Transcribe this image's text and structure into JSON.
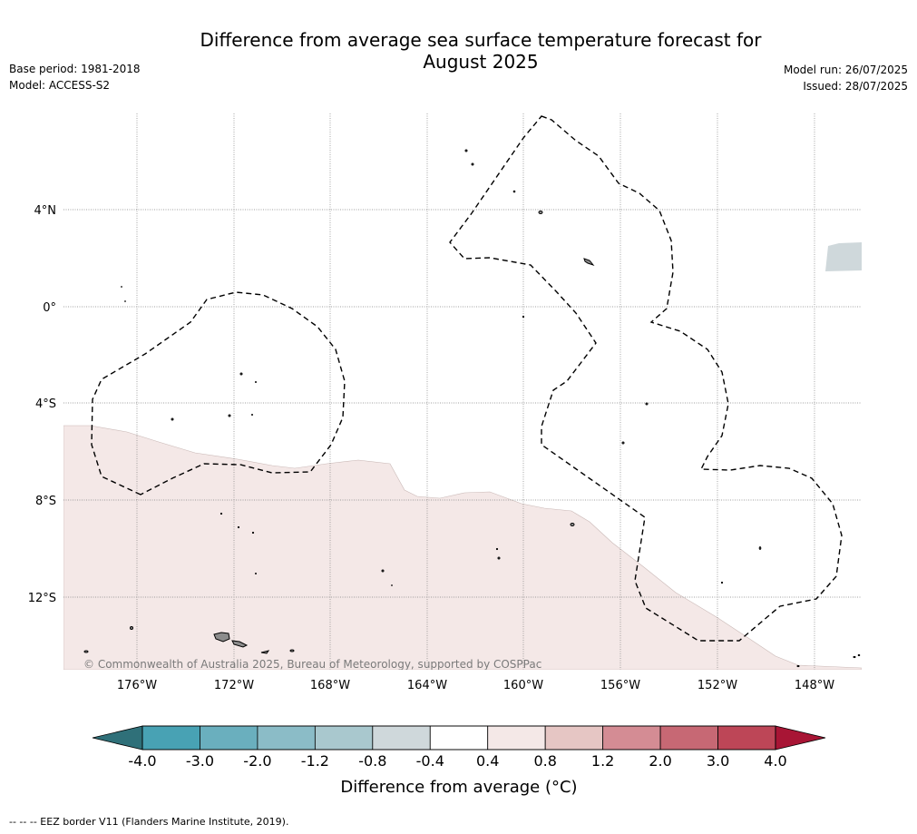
{
  "header": {
    "title_line1": "Difference from average sea surface temperature forecast for",
    "title_line2": "August 2025",
    "base_period": "Base period: 1981-2018",
    "model": "Model: ACCESS-S2",
    "model_run": "Model run: 26/07/2025",
    "issued": "Issued: 28/07/2025"
  },
  "map": {
    "lat_labels": [
      "4°N",
      "0°",
      "4°S",
      "8°S",
      "12°S"
    ],
    "lon_labels": [
      "176°W",
      "172°W",
      "168°W",
      "164°W",
      "160°W",
      "156°W",
      "152°W",
      "148°W"
    ],
    "copyright": "© Commonwealth of Australia 2025, Bureau of Meteorology, supported by COSPPac",
    "colors": {
      "anomaly_0p4_0p8": "#f4e8e7",
      "anomaly_neg0p8_neg0p4": "#cfd8db",
      "land": "#8c8c8c",
      "grid": "#808080"
    }
  },
  "colorbar": {
    "ticks": [
      "-4.0",
      "-3.0",
      "-2.0",
      "-1.2",
      "-0.8",
      "-0.4",
      "0.4",
      "0.8",
      "1.2",
      "2.0",
      "3.0",
      "4.0"
    ],
    "low_extend_color": "#2f7079",
    "high_extend_color": "#a81535",
    "colors": [
      "#48a2b4",
      "#6aafbe",
      "#8bbcc7",
      "#a9c8ce",
      "#cfd8db",
      "#ffffff",
      "#f4e8e7",
      "#e6c6c4",
      "#d48c94",
      "#c76874",
      "#bd4657"
    ],
    "label": "Difference from average (°C)"
  },
  "legend_footer": "--  --  -- EEZ border V11 (Flanders Marine Institute, 2019)."
}
